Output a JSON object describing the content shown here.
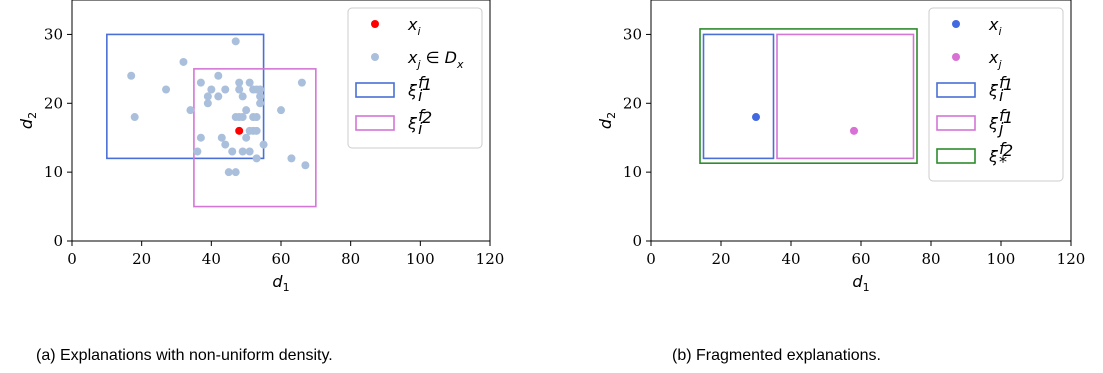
{
  "chart_data": [
    {
      "type": "scatter",
      "subplot": "(a)",
      "caption": "(a) Explanations with non-uniform density.",
      "xlabel": "d1",
      "ylabel": "d2",
      "xlim": [
        0,
        120
      ],
      "ylim": [
        0,
        35
      ],
      "xticks": [
        0,
        20,
        40,
        60,
        80,
        100,
        120
      ],
      "yticks": [
        0,
        10,
        20,
        30
      ],
      "grid": false,
      "legend_position": "top-right",
      "series": [
        {
          "name": "x_i",
          "kind": "point",
          "color": "#ff0000",
          "points": [
            [
              48,
              16
            ]
          ]
        },
        {
          "name": "x_j ∈ D_x",
          "kind": "point",
          "color": "#a9bfdc",
          "points": [
            [
              17,
              24
            ],
            [
              18,
              18
            ],
            [
              27,
              22
            ],
            [
              32,
              26
            ],
            [
              34,
              19
            ],
            [
              36,
              13
            ],
            [
              37,
              15
            ],
            [
              37,
              23
            ],
            [
              39,
              21
            ],
            [
              39,
              20
            ],
            [
              40,
              22
            ],
            [
              42,
              24
            ],
            [
              42,
              21
            ],
            [
              43,
              15
            ],
            [
              44,
              14
            ],
            [
              44,
              22
            ],
            [
              45,
              10
            ],
            [
              46,
              13
            ],
            [
              47,
              10
            ],
            [
              47,
              29
            ],
            [
              47,
              18
            ],
            [
              48,
              23
            ],
            [
              48,
              22
            ],
            [
              48,
              18
            ],
            [
              49,
              13
            ],
            [
              49,
              21
            ],
            [
              49,
              18
            ],
            [
              50,
              15
            ],
            [
              50,
              19
            ],
            [
              51,
              16
            ],
            [
              51,
              13
            ],
            [
              51,
              23
            ],
            [
              52,
              16
            ],
            [
              52,
              22
            ],
            [
              52,
              18
            ],
            [
              53,
              22
            ],
            [
              53,
              18
            ],
            [
              53,
              16
            ],
            [
              53,
              12
            ],
            [
              54,
              21
            ],
            [
              54,
              20
            ],
            [
              54,
              22
            ],
            [
              55,
              14
            ],
            [
              60,
              19
            ],
            [
              63,
              12
            ],
            [
              66,
              23
            ],
            [
              67,
              11
            ]
          ]
        },
        {
          "name": "ξ_i^{f1}",
          "kind": "box",
          "color": "#4a6fd6",
          "x": [
            10,
            55
          ],
          "y": [
            12,
            30
          ]
        },
        {
          "name": "ξ_i^{f2}",
          "kind": "box",
          "color": "#d476d6",
          "x": [
            35,
            70
          ],
          "y": [
            5,
            25
          ]
        }
      ]
    },
    {
      "type": "scatter",
      "subplot": "(b)",
      "caption": "(b) Fragmented explanations.",
      "xlabel": "d1",
      "ylabel": "d2",
      "xlim": [
        0,
        120
      ],
      "ylim": [
        0,
        35
      ],
      "xticks": [
        0,
        20,
        40,
        60,
        80,
        100,
        120
      ],
      "yticks": [
        0,
        10,
        20,
        30
      ],
      "grid": false,
      "legend_position": "top-right",
      "series": [
        {
          "name": "x_i",
          "kind": "point",
          "color": "#4169e1",
          "points": [
            [
              30,
              18
            ]
          ]
        },
        {
          "name": "x_j",
          "kind": "point",
          "color": "#d970d6",
          "points": [
            [
              58,
              16
            ]
          ]
        },
        {
          "name": "ξ_i^{f1}",
          "kind": "box",
          "color": "#4a6fd6",
          "x": [
            15,
            35
          ],
          "y": [
            12,
            30
          ]
        },
        {
          "name": "ξ_j^{f1}",
          "kind": "box",
          "color": "#d476d6",
          "x": [
            36,
            75
          ],
          "y": [
            12,
            30
          ]
        },
        {
          "name": "ξ_*^{f2}",
          "kind": "box",
          "color": "#2e8b2e",
          "x": [
            14,
            76
          ],
          "y": [
            11.3,
            30.8
          ]
        }
      ]
    }
  ]
}
